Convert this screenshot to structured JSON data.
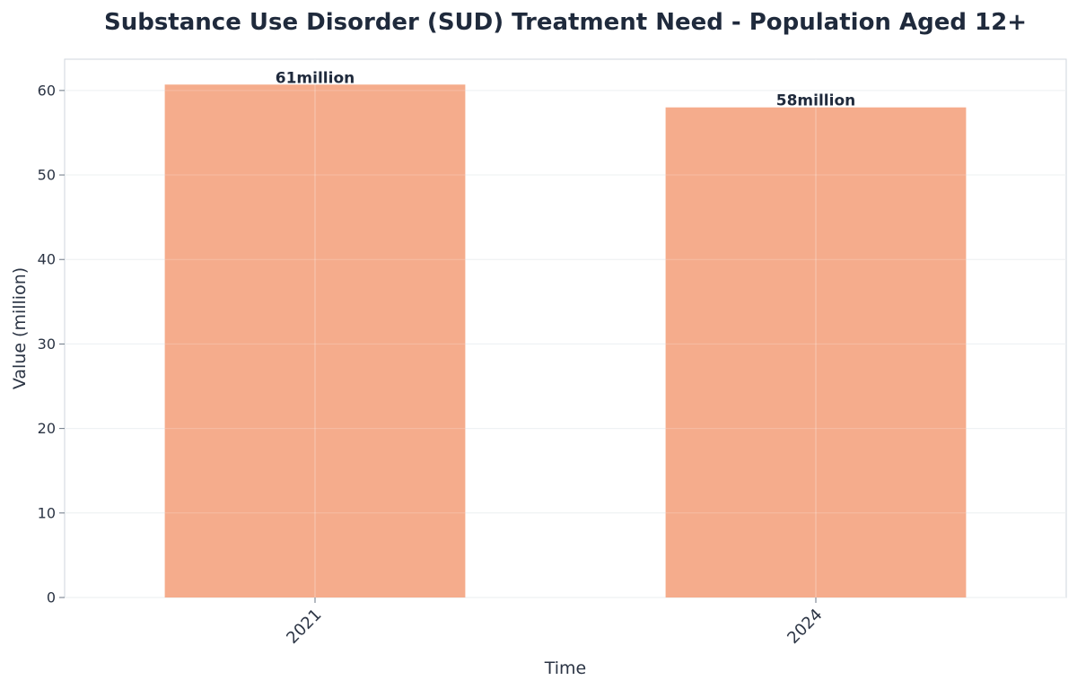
{
  "chart_data": {
    "type": "bar",
    "title": "Substance Use Disorder (SUD) Treatment Need - Population Aged 12+",
    "xlabel": "Time",
    "ylabel": "Value (million)",
    "categories": [
      "2021",
      "2024"
    ],
    "values": [
      60.7,
      58.0
    ],
    "data_labels": [
      "61million",
      "58million"
    ],
    "ylim": [
      0,
      63.7
    ],
    "yticks": [
      0,
      10,
      20,
      30,
      40,
      50,
      60
    ],
    "xtick_rotation_deg": -45,
    "grid": true,
    "legend": "none",
    "colors": {
      "bar": "#f4a582",
      "grid": "#e8ecef",
      "axis": "#cfd6dc",
      "text": "#1f2a3c"
    }
  }
}
